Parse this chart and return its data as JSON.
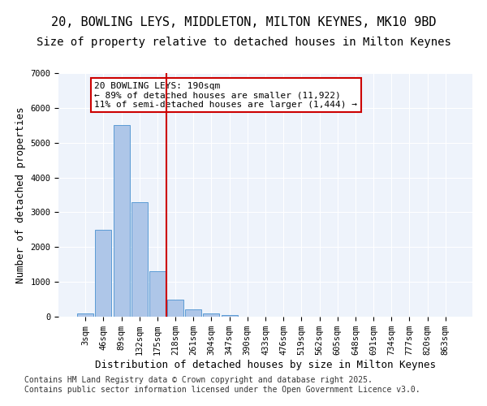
{
  "title_line1": "20, BOWLING LEYS, MIDDLETON, MILTON KEYNES, MK10 9BD",
  "title_line2": "Size of property relative to detached houses in Milton Keynes",
  "xlabel": "Distribution of detached houses by size in Milton Keynes",
  "ylabel": "Number of detached properties",
  "categories": [
    "3sqm",
    "46sqm",
    "89sqm",
    "132sqm",
    "175sqm",
    "218sqm",
    "261sqm",
    "304sqm",
    "347sqm",
    "390sqm",
    "433sqm",
    "476sqm",
    "519sqm",
    "562sqm",
    "605sqm",
    "648sqm",
    "691sqm",
    "734sqm",
    "777sqm",
    "820sqm",
    "863sqm"
  ],
  "values": [
    100,
    2500,
    5500,
    3300,
    1300,
    480,
    220,
    90,
    50,
    0,
    0,
    0,
    0,
    0,
    0,
    0,
    0,
    0,
    0,
    0,
    0
  ],
  "bar_color": "#aec6e8",
  "bar_edge_color": "#5b9bd5",
  "background_color": "#eef3fb",
  "grid_color": "#ffffff",
  "vline_x_index": 4.5,
  "vline_color": "#cc0000",
  "annotation_text": "20 BOWLING LEYS: 190sqm\n← 89% of detached houses are smaller (11,922)\n11% of semi-detached houses are larger (1,444) →",
  "annotation_box_color": "#cc0000",
  "ylim": [
    0,
    7000
  ],
  "yticks": [
    0,
    1000,
    2000,
    3000,
    4000,
    5000,
    6000,
    7000
  ],
  "footnote": "Contains HM Land Registry data © Crown copyright and database right 2025.\nContains public sector information licensed under the Open Government Licence v3.0.",
  "title_fontsize": 11,
  "subtitle_fontsize": 10,
  "axis_label_fontsize": 9,
  "tick_fontsize": 7.5,
  "annotation_fontsize": 8,
  "footnote_fontsize": 7
}
